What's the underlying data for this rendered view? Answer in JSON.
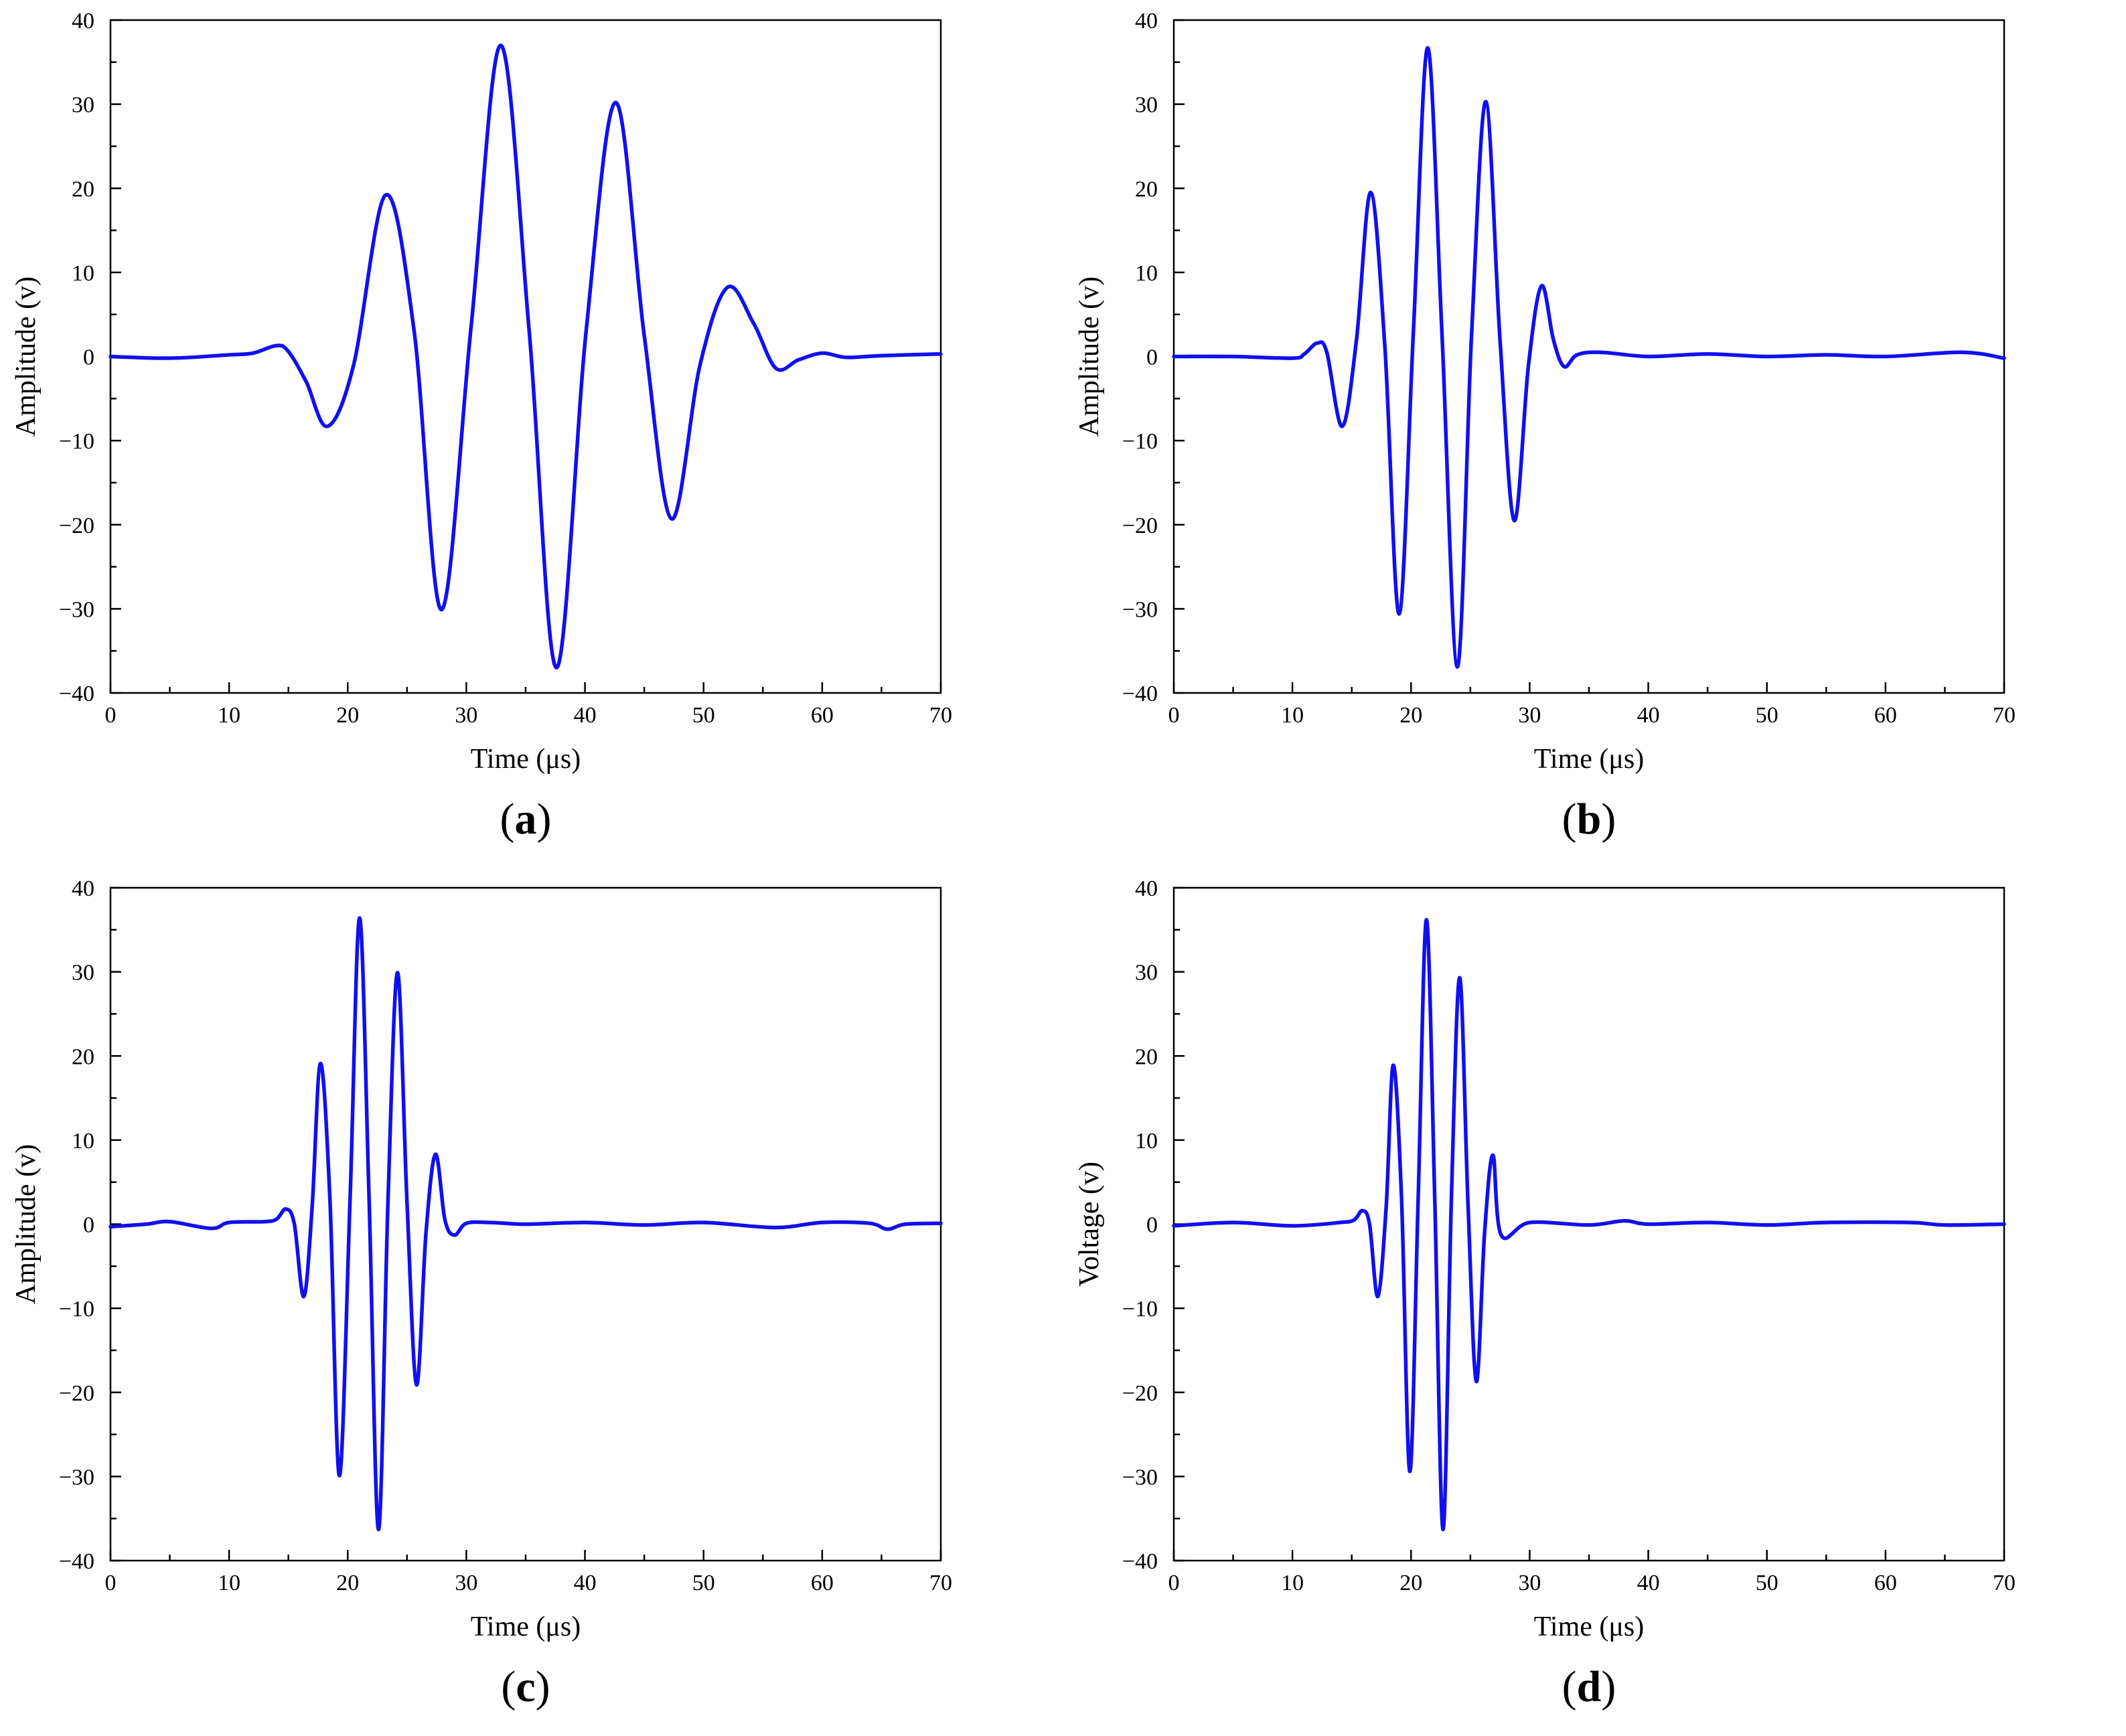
{
  "chart_data": [
    {
      "type": "line",
      "caption": "a",
      "xlabel": "Time (μs)",
      "ylabel": "Amplitude (v)",
      "xlim": [
        0,
        70
      ],
      "ylim": [
        -40,
        40
      ],
      "xticks": [
        0,
        10,
        20,
        30,
        40,
        50,
        60,
        70
      ],
      "yticks": [
        -40,
        -30,
        -20,
        -10,
        0,
        10,
        20,
        30,
        40
      ],
      "grid": false,
      "line_color": "#1010ee",
      "series": [
        {
          "x": [
            0,
            5,
            10,
            12,
            14,
            15,
            16.5,
            18.3,
            20.5,
            23.2,
            25.6,
            27.9,
            30.4,
            32.9,
            35.3,
            37.6,
            40.1,
            42.6,
            45.0,
            47.3,
            49.7,
            52.0,
            54.2,
            56.1,
            58.0,
            60,
            62,
            65,
            70
          ],
          "y": [
            0,
            -0.2,
            0.2,
            0.4,
            1.3,
            0.6,
            -3.0,
            -8.3,
            -1.0,
            19.2,
            3.0,
            -30.1,
            3.5,
            37.0,
            3.0,
            -37.0,
            3.0,
            30.2,
            2.5,
            -19.3,
            -1.0,
            8.2,
            4.0,
            -1.4,
            -0.4,
            0.4,
            -0.1,
            0.1,
            0.3
          ]
        }
      ]
    },
    {
      "type": "line",
      "caption": "b",
      "xlabel": "Time (μs)",
      "ylabel": "Amplitude (v)",
      "xlim": [
        0,
        70
      ],
      "ylim": [
        -40,
        40
      ],
      "xticks": [
        0,
        10,
        20,
        30,
        40,
        50,
        60,
        70
      ],
      "yticks": [
        -40,
        -30,
        -20,
        -10,
        0,
        10,
        20,
        30,
        40
      ],
      "grid": false,
      "line_color": "#1010ee",
      "series": [
        {
          "x": [
            0,
            5,
            10,
            11.0,
            12.1,
            12.9,
            14.2,
            15.4,
            16.6,
            17.8,
            19.0,
            20.2,
            21.4,
            22.6,
            23.9,
            25.1,
            26.3,
            27.5,
            28.7,
            29.9,
            31.0,
            32.0,
            32.9,
            34.0,
            36,
            40,
            45,
            50,
            55,
            60,
            66.5,
            70
          ],
          "y": [
            0,
            0,
            -0.2,
            0.3,
            1.6,
            0.5,
            -8.3,
            2.0,
            19.5,
            1.0,
            -30.6,
            3.0,
            36.7,
            3.0,
            -36.9,
            2.5,
            30.3,
            2.0,
            -19.5,
            -1.0,
            8.4,
            2.0,
            -1.2,
            0.2,
            0.5,
            0,
            0.3,
            0,
            0.2,
            0,
            0.5,
            -0.2
          ]
        }
      ]
    },
    {
      "type": "line",
      "caption": "c",
      "xlabel": "Time (μs)",
      "ylabel": "Amplitude (v)",
      "xlim": [
        0,
        70
      ],
      "ylim": [
        -40,
        40
      ],
      "xticks": [
        0,
        10,
        20,
        30,
        40,
        50,
        60,
        70
      ],
      "yticks": [
        -40,
        -30,
        -20,
        -10,
        0,
        10,
        20,
        30,
        40
      ],
      "grid": false,
      "line_color": "#1010ee",
      "series": [
        {
          "x": [
            0,
            3,
            5,
            8.5,
            10,
            13,
            14.0,
            14.8,
            15.5,
            16.3,
            17.0,
            17.7,
            18.5,
            19.3,
            20.2,
            21.0,
            21.8,
            22.6,
            23.4,
            24.2,
            25.0,
            25.8,
            26.6,
            27.4,
            28.2,
            29.0,
            30,
            32,
            35,
            40,
            45,
            50,
            56,
            60,
            64,
            65.5,
            67,
            70
          ],
          "y": [
            -0.3,
            0,
            0.3,
            -0.5,
            0.2,
            0.3,
            0.6,
            1.8,
            0,
            -8.6,
            2.0,
            19.1,
            3.0,
            -29.9,
            3.0,
            36.4,
            3.0,
            -36.3,
            3.0,
            29.9,
            2.5,
            -19.1,
            -1.0,
            8.3,
            0.5,
            -1.3,
            0.1,
            0.2,
            0,
            0.2,
            -0.1,
            0.2,
            -0.4,
            0.2,
            0.1,
            -0.6,
            0,
            0.1
          ]
        }
      ]
    },
    {
      "type": "line",
      "caption": "d",
      "xlabel": "Time (μs)",
      "ylabel": "Voltage (v)",
      "xlim": [
        0,
        70
      ],
      "ylim": [
        -40,
        40
      ],
      "xticks": [
        0,
        10,
        20,
        30,
        40,
        50,
        60,
        70
      ],
      "yticks": [
        -40,
        -30,
        -20,
        -10,
        0,
        10,
        20,
        30,
        40
      ],
      "grid": false,
      "line_color": "#1010ee",
      "series": [
        {
          "x": [
            0,
            5,
            10,
            14,
            15.2,
            15.9,
            16.5,
            17.2,
            17.9,
            18.5,
            19.2,
            19.9,
            20.6,
            21.3,
            22.0,
            22.7,
            23.4,
            24.1,
            24.8,
            25.5,
            26.2,
            26.9,
            27.6,
            30,
            35,
            38,
            40,
            45,
            50,
            55,
            62,
            65,
            70
          ],
          "y": [
            -0.2,
            0.2,
            -0.2,
            0.2,
            0.5,
            1.6,
            0,
            -8.6,
            2.0,
            18.9,
            3.0,
            -29.4,
            3.0,
            36.2,
            3.0,
            -36.3,
            3.0,
            29.3,
            2.5,
            -18.7,
            -1.0,
            8.2,
            -1.3,
            0.2,
            -0.1,
            0.4,
            0,
            0.2,
            -0.1,
            0.2,
            0.2,
            -0.1,
            0
          ]
        }
      ]
    }
  ]
}
